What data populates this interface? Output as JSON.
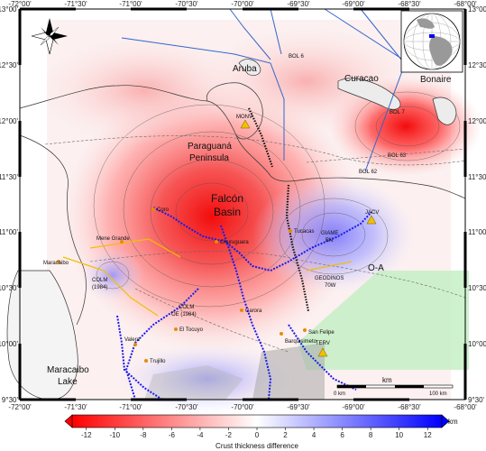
{
  "axes": {
    "top_ticks": [
      "-72°00'",
      "-71°30'",
      "-71°00'",
      "-70°30'",
      "-70°00'",
      "-69°30'",
      "-69°00'",
      "-68°30'",
      "-68°00'"
    ],
    "bottom_ticks": [
      "-72°00'",
      "-71°30'",
      "-71°00'",
      "-70°30'",
      "-70°00'",
      "-69°30'",
      "-69°00'",
      "-68°30'",
      "-68°00'"
    ],
    "left_ticks": [
      "13°00'",
      "12°30'",
      "12°00'",
      "11°30'",
      "11°00'",
      "10°30'",
      "10°00'",
      "9°30'"
    ],
    "right_ticks": [
      "13°00'",
      "12°30'",
      "12°00'",
      "11°30'",
      "11°00'",
      "10°30'",
      "10°00'",
      "9°30'"
    ]
  },
  "regions": {
    "aruba": "Aruba",
    "curacao": "Curacao",
    "bonaire": "Bonaire",
    "paraguana_1": "Paraguaná",
    "paraguana_2": "Peninsula",
    "falcon_1": "Falcón",
    "falcon_2": "Basin",
    "maracaibo_1": "Maracaibo",
    "maracaibo_2": "Lake",
    "oa": "O-A"
  },
  "profiles": {
    "bol6": "BOL 6",
    "bol7": "BOL 7",
    "bol63": "BOL 63",
    "bol62": "BOL 62",
    "giame_1": "GIAME",
    "giame_2": "BN",
    "geodinos_1": "GEODINOS",
    "geodinos_2": "70W",
    "colm_e_1": "COLM",
    "colm_e_2": "OE (1984)",
    "colm_w_1": "COLM",
    "colm_w_2": "(1984)"
  },
  "stations": {
    "monv": "MONV",
    "jacv": "JACV",
    "terv": "TERV"
  },
  "towns": [
    "Coro",
    "Churuguara",
    "Tucacas",
    "Barquisimeto",
    "San Felipe",
    "Carora",
    "El Tocuyo",
    "Trujillo",
    "Valera",
    "Mene Grande",
    "Maracaibo"
  ],
  "scale_bar": {
    "unit": "km",
    "start": "0 km",
    "end": "100 km"
  },
  "colorbar": {
    "title": "Crust thickness difference",
    "unit": "km",
    "ticks": [
      "-12",
      "-10",
      "-8",
      "-6",
      "-4",
      "-2",
      "0",
      "2",
      "4",
      "6",
      "8",
      "10",
      "12"
    ],
    "min": -13,
    "max": 13,
    "colors": [
      "#ff0000",
      "#ffffff",
      "#0000ff"
    ]
  }
}
